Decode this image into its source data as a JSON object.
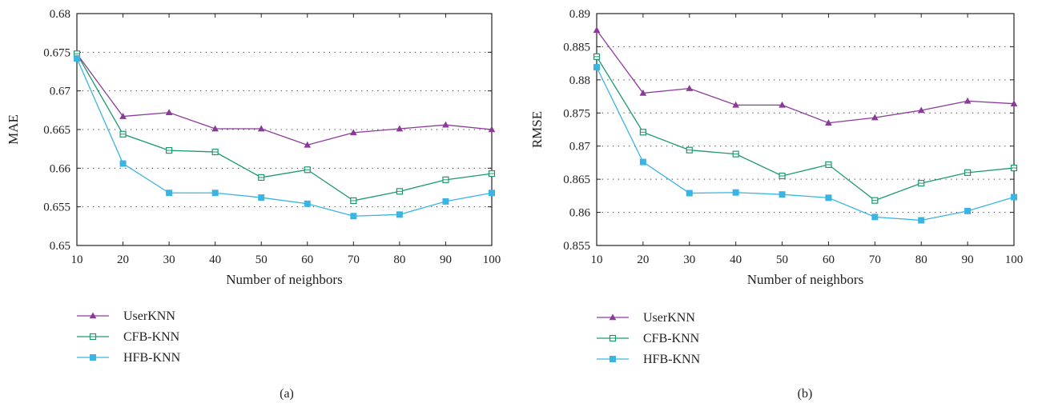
{
  "series_colors": {
    "UserKNN": "#8b3a9a",
    "CFB-KNN": "#1a9a6c",
    "HFB-KNN": "#3ab4e2"
  },
  "chart_data": [
    {
      "type": "line",
      "caption": "(a)",
      "xlabel": "Number of neighbors",
      "ylabel": "MAE",
      "x": [
        10,
        20,
        30,
        40,
        50,
        60,
        70,
        80,
        90,
        100
      ],
      "x_ticks": [
        "10",
        "20",
        "30",
        "40",
        "50",
        "60",
        "70",
        "80",
        "90",
        "100"
      ],
      "xlim": [
        10,
        100
      ],
      "ylim": [
        0.65,
        0.68
      ],
      "y_ticks": [
        0.65,
        0.655,
        0.66,
        0.665,
        0.67,
        0.675,
        0.68
      ],
      "y_tick_labels": [
        "0.65",
        "0.655",
        "0.66",
        "0.665",
        "0.67",
        "0.675",
        "0.68"
      ],
      "grid": "dotted horizontal",
      "legend_position": "below",
      "series": [
        {
          "name": "UserKNN",
          "marker": "triangle",
          "values": [
            0.6748,
            0.6667,
            0.6672,
            0.6651,
            0.6651,
            0.663,
            0.6646,
            0.6651,
            0.6656,
            0.665
          ]
        },
        {
          "name": "CFB-KNN",
          "marker": "square-open",
          "values": [
            0.6748,
            0.6644,
            0.6623,
            0.6621,
            0.6588,
            0.6598,
            0.6558,
            0.657,
            0.6585,
            0.6593
          ]
        },
        {
          "name": "HFB-KNN",
          "marker": "square-filled",
          "values": [
            0.6742,
            0.6606,
            0.6568,
            0.6568,
            0.6562,
            0.6554,
            0.6538,
            0.654,
            0.6557,
            0.6568
          ]
        }
      ]
    },
    {
      "type": "line",
      "caption": "(b)",
      "xlabel": "Number of neighbors",
      "ylabel": "RMSE",
      "x": [
        10,
        20,
        30,
        40,
        50,
        60,
        70,
        80,
        90,
        100
      ],
      "x_ticks": [
        "10",
        "20",
        "30",
        "40",
        "50",
        "60",
        "70",
        "80",
        "90",
        "100"
      ],
      "xlim": [
        10,
        100
      ],
      "ylim": [
        0.855,
        0.89
      ],
      "y_ticks": [
        0.855,
        0.86,
        0.865,
        0.87,
        0.875,
        0.88,
        0.885,
        0.89
      ],
      "y_tick_labels": [
        "0.855",
        "0.86",
        "0.865",
        "0.87",
        "0.875",
        "0.88",
        "0.885",
        "0.89"
      ],
      "grid": "dotted horizontal",
      "legend_position": "below",
      "series": [
        {
          "name": "UserKNN",
          "marker": "triangle",
          "values": [
            0.8875,
            0.878,
            0.8787,
            0.8762,
            0.8762,
            0.8735,
            0.8743,
            0.8754,
            0.8768,
            0.8764
          ]
        },
        {
          "name": "CFB-KNN",
          "marker": "square-open",
          "values": [
            0.8835,
            0.8721,
            0.8694,
            0.8688,
            0.8655,
            0.8672,
            0.8618,
            0.8644,
            0.866,
            0.8667
          ]
        },
        {
          "name": "HFB-KNN",
          "marker": "square-filled",
          "values": [
            0.8819,
            0.8676,
            0.8629,
            0.863,
            0.8627,
            0.8622,
            0.8593,
            0.8588,
            0.8602,
            0.8623
          ]
        }
      ]
    }
  ]
}
